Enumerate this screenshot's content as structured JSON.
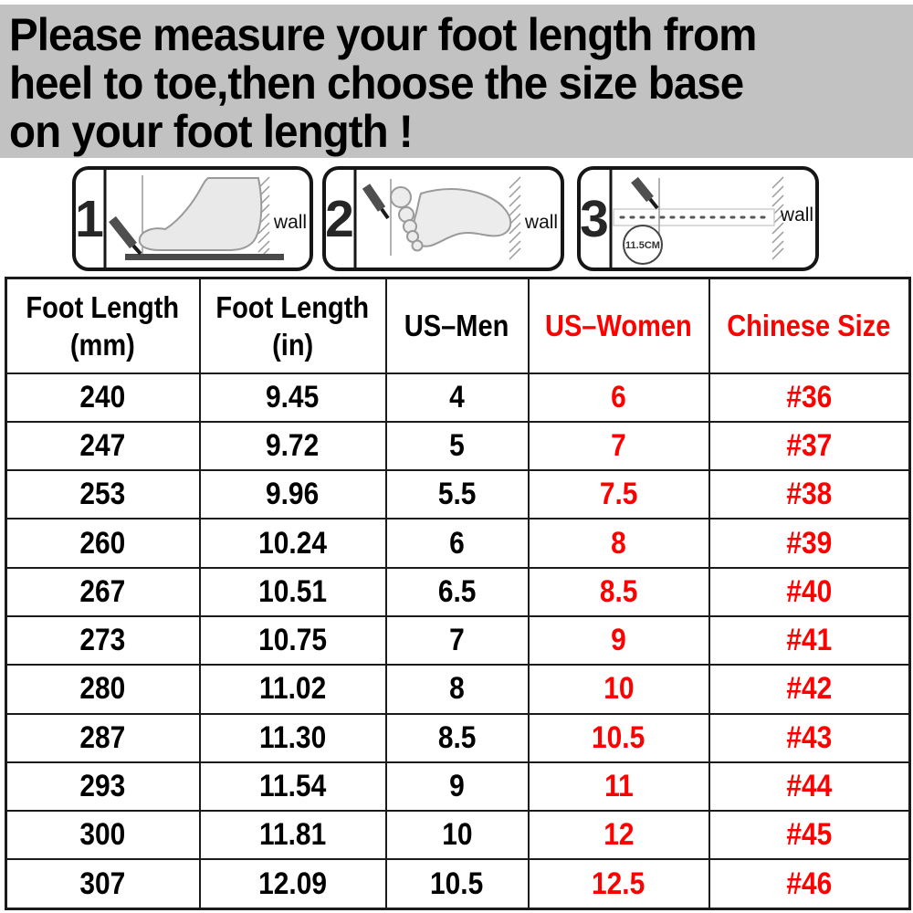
{
  "banner": {
    "lines": [
      "Please measure your foot length from",
      "heel to toe,then choose the size base",
      "on your foot length !"
    ]
  },
  "diagrams": {
    "steps": [
      {
        "number": "1",
        "wall_label": "wall"
      },
      {
        "number": "2",
        "wall_label": "wall"
      },
      {
        "number": "3",
        "wall_label": "wall",
        "ruler_label": "11.5CM"
      }
    ]
  },
  "table": {
    "headers": [
      {
        "lines": [
          "Foot Length",
          "(mm)"
        ],
        "red": false
      },
      {
        "lines": [
          "Foot Length",
          "(in)"
        ],
        "red": false
      },
      {
        "lines": [
          "US–Men"
        ],
        "red": false
      },
      {
        "lines": [
          "US–Women"
        ],
        "red": true
      },
      {
        "lines": [
          "Chinese Size"
        ],
        "red": true
      }
    ],
    "red_columns": [
      3,
      4
    ],
    "rows": [
      [
        "240",
        "9.45",
        "4",
        "6",
        "#36"
      ],
      [
        "247",
        "9.72",
        "5",
        "7",
        "#37"
      ],
      [
        "253",
        "9.96",
        "5.5",
        "7.5",
        "#38"
      ],
      [
        "260",
        "10.24",
        "6",
        "8",
        "#39"
      ],
      [
        "267",
        "10.51",
        "6.5",
        "8.5",
        "#40"
      ],
      [
        "273",
        "10.75",
        "7",
        "9",
        "#41"
      ],
      [
        "280",
        "11.02",
        "8",
        "10",
        "#42"
      ],
      [
        "287",
        "11.30",
        "8.5",
        "10.5",
        "#43"
      ],
      [
        "293",
        "11.54",
        "9",
        "11",
        "#44"
      ],
      [
        "300",
        "11.81",
        "10",
        "12",
        "#45"
      ],
      [
        "307",
        "12.09",
        "10.5",
        "12.5",
        "#46"
      ]
    ]
  },
  "colors": {
    "accent_red": "#ff0000",
    "banner_background": "#c2c2c2",
    "table_border": "#1a1a1a"
  }
}
